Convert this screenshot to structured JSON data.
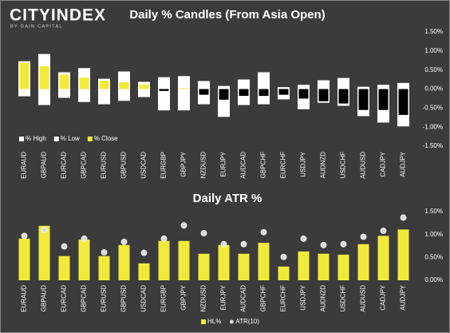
{
  "logo": {
    "name": "CITYINDEX",
    "tagline": "BY GAIN CAPITAL"
  },
  "chart_data": [
    {
      "type": "candles",
      "title": "Daily % Candles (From Asia Open)",
      "categories": [
        "EURAUD",
        "GBPAUD",
        "EURCAD",
        "GBPCAD",
        "EURUSD",
        "GBPUSD",
        "USDCAD",
        "EURGBP",
        "GBPJPY",
        "NZDUSD",
        "EURJPY",
        "AUDCAD",
        "GBPCHF",
        "EURCHF",
        "USDJPY",
        "AUDNZD",
        "USDCHF",
        "AUDUSD",
        "CADJPY",
        "AUDJPY"
      ],
      "series": [
        {
          "name": "% High",
          "color": "#ffffff",
          "values": [
            0.72,
            0.91,
            0.43,
            0.54,
            0.26,
            0.45,
            0.18,
            0.3,
            0.33,
            0.2,
            0.07,
            0.24,
            0.43,
            0.04,
            0.1,
            0.22,
            0.28,
            0.05,
            0.1,
            0.15
          ]
        },
        {
          "name": "% Low",
          "color": "#ffffff",
          "values": [
            -0.18,
            -0.41,
            -0.22,
            -0.33,
            -0.39,
            -0.3,
            -0.2,
            -0.55,
            -0.55,
            -0.39,
            -0.72,
            -0.41,
            -0.39,
            -0.26,
            -0.52,
            -0.35,
            -0.43,
            -0.7,
            -0.87,
            -0.97
          ]
        },
        {
          "name": "% Close",
          "color": "#f2ea3a",
          "negative_color": "#000000",
          "values": [
            0.68,
            0.6,
            0.38,
            0.3,
            0.22,
            0.18,
            0.12,
            -0.05,
            0.02,
            -0.15,
            -0.28,
            -0.18,
            -0.18,
            -0.15,
            -0.25,
            -0.32,
            -0.38,
            -0.55,
            -0.55,
            -0.68
          ]
        }
      ],
      "ylim": [
        -1.5,
        1.5
      ],
      "yticks": [
        {
          "value": 1.5,
          "label": "1.50%"
        },
        {
          "value": 1.0,
          "label": "1.00%"
        },
        {
          "value": 0.5,
          "label": "0.50%"
        },
        {
          "value": 0,
          "label": "0.00%"
        },
        {
          "value": -0.5,
          "label": "-0.50%"
        },
        {
          "value": -1.0,
          "label": "-1.00%"
        },
        {
          "value": -1.5,
          "label": "-1.50%"
        }
      ],
      "legend": "lower left"
    },
    {
      "type": "combo",
      "title": "Daily ATR %",
      "categories": [
        "EURAUD",
        "GBPAUD",
        "EURCAD",
        "GBPCAD",
        "EURUSD",
        "GBPUSD",
        "USDCAD",
        "EURGBP",
        "GBPJPY",
        "NZDUSD",
        "EURJPY",
        "AUDCAD",
        "GBPCHF",
        "EURCHF",
        "USDJPY",
        "AUDNZD",
        "USDCHF",
        "AUDUSD",
        "CADJPY",
        "AUDJPY"
      ],
      "series": [
        {
          "name": "HL%",
          "type": "bar",
          "color": "#f2ea3a",
          "values": [
            0.91,
            1.19,
            0.53,
            0.89,
            0.53,
            0.77,
            0.37,
            0.86,
            0.86,
            0.58,
            0.77,
            0.58,
            0.82,
            0.3,
            0.63,
            0.58,
            0.56,
            0.79,
            0.97,
            1.11
          ]
        },
        {
          "name": "ATR(10)",
          "type": "dot",
          "color": "#d9d9d9",
          "values": [
            0.97,
            1.1,
            0.74,
            0.91,
            0.61,
            0.84,
            0.6,
            0.91,
            1.2,
            1.03,
            0.79,
            0.79,
            1.05,
            0.51,
            0.91,
            0.77,
            0.79,
            0.95,
            1.08,
            1.37
          ]
        }
      ],
      "ylim": [
        0,
        1.5
      ],
      "yticks": [
        {
          "value": 1.5,
          "label": "1.50%"
        },
        {
          "value": 1.0,
          "label": "1.00%"
        },
        {
          "value": 0.5,
          "label": "0.50%"
        },
        {
          "value": 0,
          "label": "0.00%"
        }
      ],
      "legend": "bottom"
    }
  ]
}
